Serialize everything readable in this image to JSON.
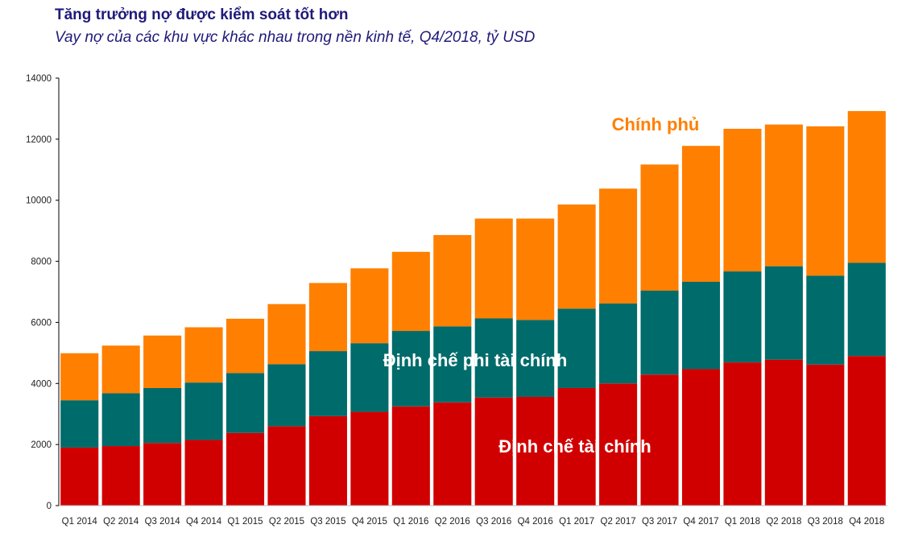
{
  "title": "Tăng trưởng nợ được kiểm soát tốt hơn",
  "subtitle": "Vay nợ của các khu vực khác nhau trong nền kinh tế, Q4/2018, tỷ USD",
  "colors": {
    "financial": "#d10000",
    "nonfinancial": "#006b6b",
    "government": "#ff7f00",
    "axis": "#000000",
    "label_light": "#ffffff"
  },
  "chart_data": {
    "type": "bar",
    "stacked": true,
    "categories": [
      "Q1 2014",
      "Q2 2014",
      "Q3 2014",
      "Q4 2014",
      "Q1 2015",
      "Q2 2015",
      "Q3 2015",
      "Q4 2015",
      "Q1 2016",
      "Q2 2016",
      "Q3 2016",
      "Q4 2016",
      "Q1 2017",
      "Q2 2017",
      "Q3 2017",
      "Q4 2017",
      "Q1 2018",
      "Q2 2018",
      "Q3 2018",
      "Q4 2018"
    ],
    "series": [
      {
        "name": "Định chế tài chính",
        "color": "#d10000",
        "values": [
          1900,
          1950,
          2050,
          2150,
          2380,
          2600,
          2930,
          3070,
          3250,
          3380,
          3540,
          3560,
          3850,
          4000,
          4290,
          4470,
          4690,
          4780,
          4620,
          4900
        ]
      },
      {
        "name": "Định chế phi tài chính",
        "color": "#006b6b",
        "values": [
          1550,
          1730,
          1800,
          1880,
          1960,
          2030,
          2130,
          2250,
          2470,
          2490,
          2590,
          2520,
          2600,
          2620,
          2750,
          2860,
          2980,
          3060,
          2910,
          3050
        ]
      },
      {
        "name": "Chính phủ",
        "color": "#ff7f00",
        "values": [
          1540,
          1560,
          1720,
          1810,
          1780,
          1970,
          2230,
          2450,
          2590,
          2990,
          3270,
          3320,
          3410,
          3760,
          4130,
          4450,
          4670,
          4640,
          4890,
          4970
        ]
      }
    ],
    "ylim": [
      0,
      14000
    ],
    "yticks": [
      0,
      2000,
      4000,
      6000,
      8000,
      10000,
      12000,
      14000
    ],
    "xlabel": "",
    "ylabel": "",
    "grid": false,
    "legend": "in-chart labels"
  }
}
